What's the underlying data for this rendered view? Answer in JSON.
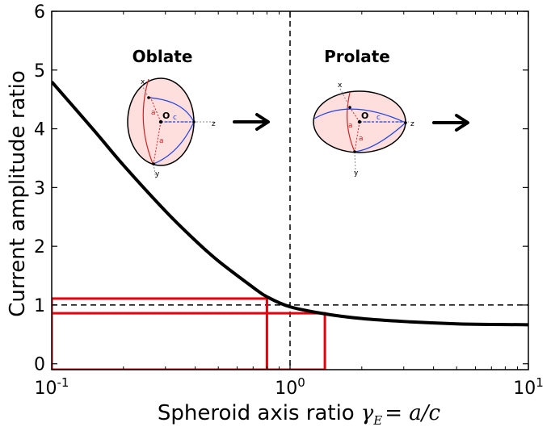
{
  "chart_data": {
    "type": "line",
    "xscale": "log",
    "xlim": [
      0.1,
      10
    ],
    "ylim": [
      -0.1,
      6
    ],
    "xticks": [
      {
        "value": 0.1,
        "base": "10",
        "exp": "-1"
      },
      {
        "value": 1,
        "base": "10",
        "exp": "0"
      },
      {
        "value": 10,
        "base": "10",
        "exp": "1"
      }
    ],
    "yticks": [
      {
        "value": 0,
        "label": "0"
      },
      {
        "value": 1,
        "label": "1"
      },
      {
        "value": 2,
        "label": "2"
      },
      {
        "value": 3,
        "label": "3"
      },
      {
        "value": 4,
        "label": "4"
      },
      {
        "value": 5,
        "label": "5"
      },
      {
        "value": 6,
        "label": "6"
      }
    ],
    "xlabel_text": "Spheroid axis ratio",
    "xlabel_math": "γ",
    "xlabel_sub": "E",
    "xlabel_rest": "= a/c",
    "ylabel": "Current amplitude ratio",
    "series": [
      {
        "color": "#000000",
        "x": [
          0.1,
          0.15,
          0.2,
          0.3,
          0.4,
          0.5,
          0.7,
          0.8,
          1.0,
          1.4,
          2.0,
          3.0,
          5.0,
          7.0,
          10.0
        ],
        "y": [
          4.8,
          3.98,
          3.38,
          2.6,
          2.1,
          1.75,
          1.3,
          1.14,
          0.97,
          0.85,
          0.77,
          0.72,
          0.68,
          0.67,
          0.665
        ]
      }
    ],
    "reference_lines": [
      {
        "orientation": "vertical",
        "value": 1,
        "style": "dashed",
        "color": "#000000"
      },
      {
        "orientation": "horizontal",
        "value": 1,
        "style": "dashed",
        "color": "#000000"
      }
    ],
    "highlight_markers": [
      {
        "x": 0.8,
        "y": 1.11,
        "color": "#e8000b"
      },
      {
        "x": 1.4,
        "y": 0.86,
        "color": "#e8000b"
      }
    ],
    "annotations": {
      "oblate_label": "Oblate",
      "prolate_label": "Prolate",
      "inset_axis_letters": [
        "x",
        "y",
        "z",
        "a",
        "a",
        "c",
        "O"
      ]
    },
    "grid": false,
    "legend": "none"
  }
}
